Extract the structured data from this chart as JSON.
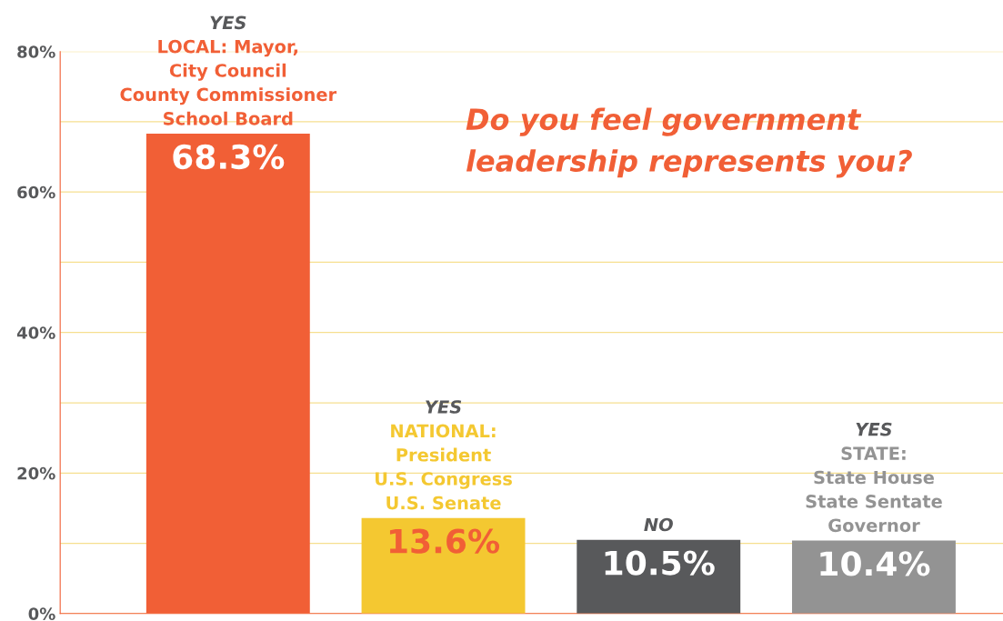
{
  "chart_data": {
    "type": "bar",
    "title": "Do you feel government\nleadership represents you?",
    "categories": [
      "YES\nLOCAL: Mayor,\nCity Council\nCounty Commissioner\nSchool Board",
      "YES\nNATIONAL:\nPresident\nU.S. Congress\nU.S. Senate",
      "NO",
      "YES\nSTATE:\nState House\nState Sentate\nGovernor"
    ],
    "values": [
      68.3,
      13.6,
      10.5,
      10.4
    ],
    "value_labels": [
      "68.3%",
      "13.6%",
      "10.5%",
      "10.4%"
    ],
    "colors": [
      "#f15f36",
      "#f4c831",
      "#58595b",
      "#939393"
    ],
    "ylim": [
      0,
      80
    ],
    "yticks": [
      {
        "value": 0,
        "label": "0%"
      },
      {
        "value": 10,
        "label": null
      },
      {
        "value": 20,
        "label": "20%"
      },
      {
        "value": 30,
        "label": null
      },
      {
        "value": 40,
        "label": "40%"
      },
      {
        "value": 50,
        "label": null
      },
      {
        "value": 60,
        "label": "60%"
      },
      {
        "value": 70,
        "label": null
      },
      {
        "value": 80,
        "label": "80%"
      }
    ],
    "grid": "y"
  }
}
